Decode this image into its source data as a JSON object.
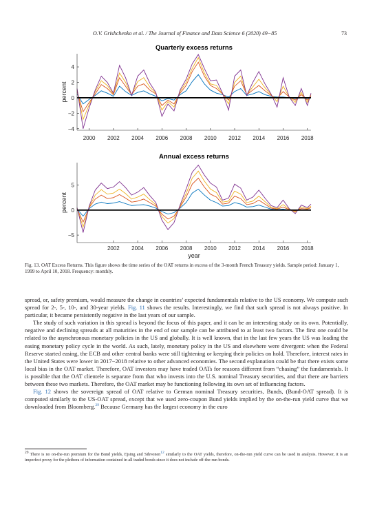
{
  "header": {
    "running_title": "O.V. Grishchenko et al. / The Journal of Finance and Data Science 6 (2020) 49−85",
    "page_number": "73"
  },
  "chart_data": [
    {
      "type": "line",
      "title": "Quarterly excess returns",
      "ylabel": "percent",
      "xlabel": "",
      "xlim": [
        1999,
        2018.3
      ],
      "ylim": [
        -4.2,
        5.7
      ],
      "xticks": [
        2000,
        2002,
        2004,
        2006,
        2008,
        2010,
        2012,
        2014,
        2016,
        2018
      ],
      "yticks": [
        -4,
        -2,
        0,
        2,
        4
      ],
      "zero_line": true,
      "grid": false,
      "series": [
        {
          "key": "s2",
          "color": "#0072bd",
          "x": [
            1999,
            1999.5,
            2000,
            2000.5,
            2001,
            2001.5,
            2002,
            2002.5,
            2003,
            2003.5,
            2004,
            2004.5,
            2005,
            2005.5,
            2006,
            2006.5,
            2007,
            2007.5,
            2008,
            2008.5,
            2009,
            2009.5,
            2010,
            2010.5,
            2011,
            2011.5,
            2012,
            2012.5,
            2013,
            2013.5,
            2014,
            2014.5,
            2015,
            2015.5,
            2016,
            2016.5,
            2017,
            2017.5,
            2018,
            2018.3
          ],
          "y": [
            0.5,
            -0.8,
            -0.2,
            0.3,
            0.9,
            0.6,
            0.2,
            1.5,
            0.8,
            0.3,
            0.7,
            0.9,
            0.5,
            0.2,
            -0.4,
            -0.1,
            -0.3,
            0.4,
            0.9,
            2.1,
            3.0,
            1.8,
            1.0,
            0.6,
            0.4,
            0.1,
            0.8,
            1.2,
            0.3,
            0.5,
            0.8,
            0.4,
            0.2,
            0.1,
            0.1,
            0.0,
            -0.1,
            0.0,
            -0.1,
            0.0
          ]
        },
        {
          "key": "s5",
          "color": "#d95319",
          "x": [
            1999,
            1999.5,
            2000,
            2000.5,
            2001,
            2001.5,
            2002,
            2002.5,
            2003,
            2003.5,
            2004,
            2004.5,
            2005,
            2005.5,
            2006,
            2006.5,
            2007,
            2007.5,
            2008,
            2008.5,
            2009,
            2009.5,
            2010,
            2010.5,
            2011,
            2011.5,
            2012,
            2012.5,
            2013,
            2013.5,
            2014,
            2014.5,
            2015,
            2015.5,
            2016,
            2016.5,
            2017,
            2017.5,
            2018,
            2018.3
          ],
          "y": [
            0.8,
            -1.8,
            -0.6,
            0.5,
            1.7,
            1.2,
            0.4,
            2.6,
            1.5,
            0.4,
            1.5,
            1.8,
            1.0,
            0.5,
            -1.0,
            -0.3,
            -0.8,
            0.6,
            1.6,
            3.4,
            4.6,
            2.8,
            1.6,
            1.2,
            0.5,
            -0.3,
            1.5,
            2.2,
            0.4,
            1.0,
            1.6,
            0.9,
            0.3,
            -0.1,
            0.8,
            0.1,
            -0.3,
            0.4,
            -0.3,
            0.2
          ]
        },
        {
          "key": "s10",
          "color": "#edb120",
          "x": [
            1999,
            1999.5,
            2000,
            2000.5,
            2001,
            2001.5,
            2002,
            2002.5,
            2003,
            2003.5,
            2004,
            2004.5,
            2005,
            2005.5,
            2006,
            2006.5,
            2007,
            2007.5,
            2008,
            2008.5,
            2009,
            2009.5,
            2010,
            2010.5,
            2011,
            2011.5,
            2012,
            2012.5,
            2013,
            2013.5,
            2014,
            2014.5,
            2015,
            2015.5,
            2016,
            2016.5,
            2017,
            2017.5,
            2018,
            2018.3
          ],
          "y": [
            1.0,
            -2.8,
            -0.9,
            0.8,
            2.2,
            1.6,
            0.5,
            3.2,
            2.0,
            0.4,
            2.1,
            2.6,
            1.4,
            0.6,
            -1.6,
            -0.5,
            -1.2,
            0.8,
            2.0,
            3.8,
            5.2,
            3.2,
            1.8,
            1.6,
            0.5,
            -0.8,
            2.0,
            2.8,
            0.4,
            1.4,
            2.4,
            1.3,
            0.4,
            -0.5,
            1.5,
            0.1,
            -0.6,
            0.7,
            -0.6,
            0.4
          ]
        },
        {
          "key": "s30",
          "color": "#7e2f8e",
          "x": [
            1999,
            1999.5,
            2000,
            2000.5,
            2001,
            2001.5,
            2002,
            2002.5,
            2003,
            2003.5,
            2004,
            2004.5,
            2005,
            2005.5,
            2006,
            2006.5,
            2007,
            2007.5,
            2008,
            2008.5,
            2009,
            2009.5,
            2010,
            2010.5,
            2011,
            2011.5,
            2012,
            2012.5,
            2013,
            2013.5,
            2014,
            2014.5,
            2015,
            2015.5,
            2016,
            2016.5,
            2017,
            2017.5,
            2018,
            2018.3
          ],
          "y": [
            1.2,
            -4.0,
            -1.3,
            1.0,
            2.8,
            2.0,
            0.6,
            4.2,
            2.6,
            0.3,
            2.8,
            3.6,
            1.9,
            0.7,
            -2.4,
            -0.8,
            -1.7,
            1.0,
            2.4,
            4.4,
            5.6,
            3.8,
            2.2,
            2.3,
            0.6,
            -1.6,
            2.8,
            3.6,
            0.3,
            2.0,
            3.4,
            1.8,
            0.5,
            -1.2,
            2.6,
            0.1,
            -1.0,
            1.2,
            -1.0,
            0.6
          ]
        }
      ]
    },
    {
      "type": "line",
      "title": "Annual excess returns",
      "ylabel": "percent",
      "xlabel": "year",
      "xlim": [
        1999,
        2018.3
      ],
      "ylim": [
        -6.5,
        9.5
      ],
      "xticks": [
        2002,
        2004,
        2006,
        2008,
        2010,
        2012,
        2014,
        2016,
        2018
      ],
      "yticks": [
        -5,
        0,
        5
      ],
      "zero_line": true,
      "grid": false,
      "series": [
        {
          "key": "s2",
          "color": "#0072bd",
          "x": [
            1999,
            1999.5,
            2000,
            2000.5,
            2001,
            2001.5,
            2002,
            2002.5,
            2003,
            2003.5,
            2004,
            2004.5,
            2005,
            2005.5,
            2006,
            2006.5,
            2007,
            2007.5,
            2008,
            2008.5,
            2009,
            2009.5,
            2010,
            2010.5,
            2011,
            2011.5,
            2012,
            2012.5,
            2013,
            2013.5,
            2014,
            2014.5,
            2015,
            2015.5,
            2016,
            2016.5,
            2017,
            2017.5,
            2018,
            2018.3
          ],
          "y": [
            0.2,
            -1.2,
            0.3,
            1.2,
            1.6,
            1.3,
            1.4,
            1.7,
            1.3,
            0.9,
            1.0,
            1.1,
            0.8,
            0.4,
            -0.3,
            -0.8,
            -0.5,
            0.4,
            1.5,
            3.4,
            4.2,
            3.0,
            2.0,
            1.5,
            0.8,
            0.9,
            1.5,
            1.2,
            0.6,
            0.7,
            1.0,
            0.6,
            0.2,
            0.1,
            0.2,
            0.0,
            -0.1,
            0.0,
            0.0,
            0.0
          ]
        },
        {
          "key": "s5",
          "color": "#d95319",
          "x": [
            1999,
            1999.5,
            2000,
            2000.5,
            2001,
            2001.5,
            2002,
            2002.5,
            2003,
            2003.5,
            2004,
            2004.5,
            2005,
            2005.5,
            2006,
            2006.5,
            2007,
            2007.5,
            2008,
            2008.5,
            2009,
            2009.5,
            2010,
            2010.5,
            2011,
            2011.5,
            2012,
            2012.5,
            2013,
            2013.5,
            2014,
            2014.5,
            2015,
            2015.5,
            2016,
            2016.5,
            2017,
            2017.5,
            2018,
            2018.3
          ],
          "y": [
            0.3,
            -2.4,
            0.5,
            2.2,
            3.0,
            2.3,
            2.5,
            3.1,
            2.4,
            1.6,
            1.8,
            2.2,
            1.5,
            0.8,
            -0.8,
            -1.8,
            -1.2,
            0.6,
            2.6,
            5.2,
            6.4,
            4.6,
            3.2,
            2.6,
            1.2,
            1.4,
            2.8,
            2.3,
            1.1,
            1.3,
            2.0,
            1.2,
            0.4,
            0.2,
            0.6,
            0.1,
            -0.2,
            0.3,
            0.2,
            0.5
          ]
        },
        {
          "key": "s10",
          "color": "#edb120",
          "x": [
            1999,
            1999.5,
            2000,
            2000.5,
            2001,
            2001.5,
            2002,
            2002.5,
            2003,
            2003.5,
            2004,
            2004.5,
            2005,
            2005.5,
            2006,
            2006.5,
            2007,
            2007.5,
            2008,
            2008.5,
            2009,
            2009.5,
            2010,
            2010.5,
            2011,
            2011.5,
            2012,
            2012.5,
            2013,
            2013.5,
            2014,
            2014.5,
            2015,
            2015.5,
            2016,
            2016.5,
            2017,
            2017.5,
            2018,
            2018.3
          ],
          "y": [
            0.4,
            -3.4,
            0.6,
            3.0,
            4.1,
            3.2,
            3.4,
            4.2,
            3.3,
            2.2,
            2.6,
            3.2,
            2.1,
            1.1,
            -1.3,
            -2.6,
            -1.7,
            0.8,
            3.3,
            6.4,
            7.8,
            5.8,
            4.2,
            3.5,
            1.6,
            1.8,
            3.8,
            3.2,
            1.5,
            1.8,
            2.8,
            1.7,
            0.6,
            0.3,
            1.1,
            0.2,
            -0.4,
            0.6,
            0.3,
            0.8
          ]
        },
        {
          "key": "s30",
          "color": "#7e2f8e",
          "x": [
            1999,
            1999.5,
            2000,
            2000.5,
            2001,
            2001.5,
            2002,
            2002.5,
            2003,
            2003.5,
            2004,
            2004.5,
            2005,
            2005.5,
            2006,
            2006.5,
            2007,
            2007.5,
            2008,
            2008.5,
            2009,
            2009.5,
            2010,
            2010.5,
            2011,
            2011.5,
            2012,
            2012.5,
            2013,
            2013.5,
            2014,
            2014.5,
            2015,
            2015.5,
            2016,
            2016.5,
            2017,
            2017.5,
            2018,
            2018.3
          ],
          "y": [
            0.5,
            -4.5,
            0.8,
            4.0,
            5.4,
            4.3,
            4.6,
            5.7,
            4.5,
            3.0,
            3.6,
            4.5,
            2.9,
            1.5,
            -2.0,
            -3.9,
            -2.5,
            1.0,
            4.2,
            7.6,
            9.0,
            7.0,
            5.4,
            4.6,
            2.0,
            2.4,
            5.2,
            4.4,
            2.0,
            2.6,
            4.0,
            2.4,
            0.9,
            0.5,
            2.0,
            0.3,
            -0.7,
            1.0,
            0.5,
            1.2
          ]
        }
      ]
    }
  ],
  "caption": "Fig. 13. OAT Excess Returns. This figure shows the time series of the OAT returns in excess of the 3-month French Treasury yields. Sample period: January 1, 1999 to April 10, 2018. Frequency: monthly.",
  "body": {
    "p1_a": "spread, or, safety premium, would measure the change in countries’ expected fundamentals relative to the US economy. We compute such spread for 2-, 5-, 10-, and 30-year yields. ",
    "p1_link": "Fig. 11",
    "p1_b": " shows the results. Interestingly, we find that such spread is not always positive. In particular, it became persistently negative in the last years of our sample.",
    "p2": "The study of such variation in this spread is beyond the focus of this paper, and it can be an interesting study on its own. Potentially, negative and declining spreads at all maturities in the end of our sample can be attributed to at least two factors. The first one could be related to the asynchronous monetary policies in the US and globally. It is well known, that in the last few years the US was leading the easing monetary policy cycle in the world. As such, lately, monetary policy in the US and elsewhere were divergent: when the Federal Reserve started easing, the ECB and other central banks were still tightening or keeping their policies on hold. Therefore, interest rates in the United States were lower in 2017−2018 relative to other advanced economies. The second explanation could be that there exists some local bias in the OAT market. Therefore, OAT investors may have traded OATs for reasons different from “chasing” the fundamentals. It is possible that the OAT clientele is separate from that who invests into the U.S. nominal Treasury securities, and that there are barriers between these two markets. Therefore, the OAT market may be functioning following its own set of influencing factors.",
    "p3_link": "Fig. 12",
    "p3_a": " shows the sovereign spread of OAT relative to German nominal Treasury securities, Bunds, (Bund-OAT spread). It is computed similarly to the US-OAT spread, except that we used zero-coupon Bund yields implied by the on-the-run yield curve that we downloaded from Bloomberg.",
    "p3_sup": "29",
    "p3_b": " Because Germany has the largest economy in the euro"
  },
  "footnote": {
    "number": "29",
    "text_a": " There is no on-the-run premium for the Bund yields, Ejsing and Sihvonen",
    "ref_sup": "12",
    "text_b": " similarly to the OAT yields, therefore, on-the-run yield curve can be used in analysis. However, it is an imperfect proxy for the plethora of information contained in all traded bonds since it does not include off-the-run bonds."
  }
}
